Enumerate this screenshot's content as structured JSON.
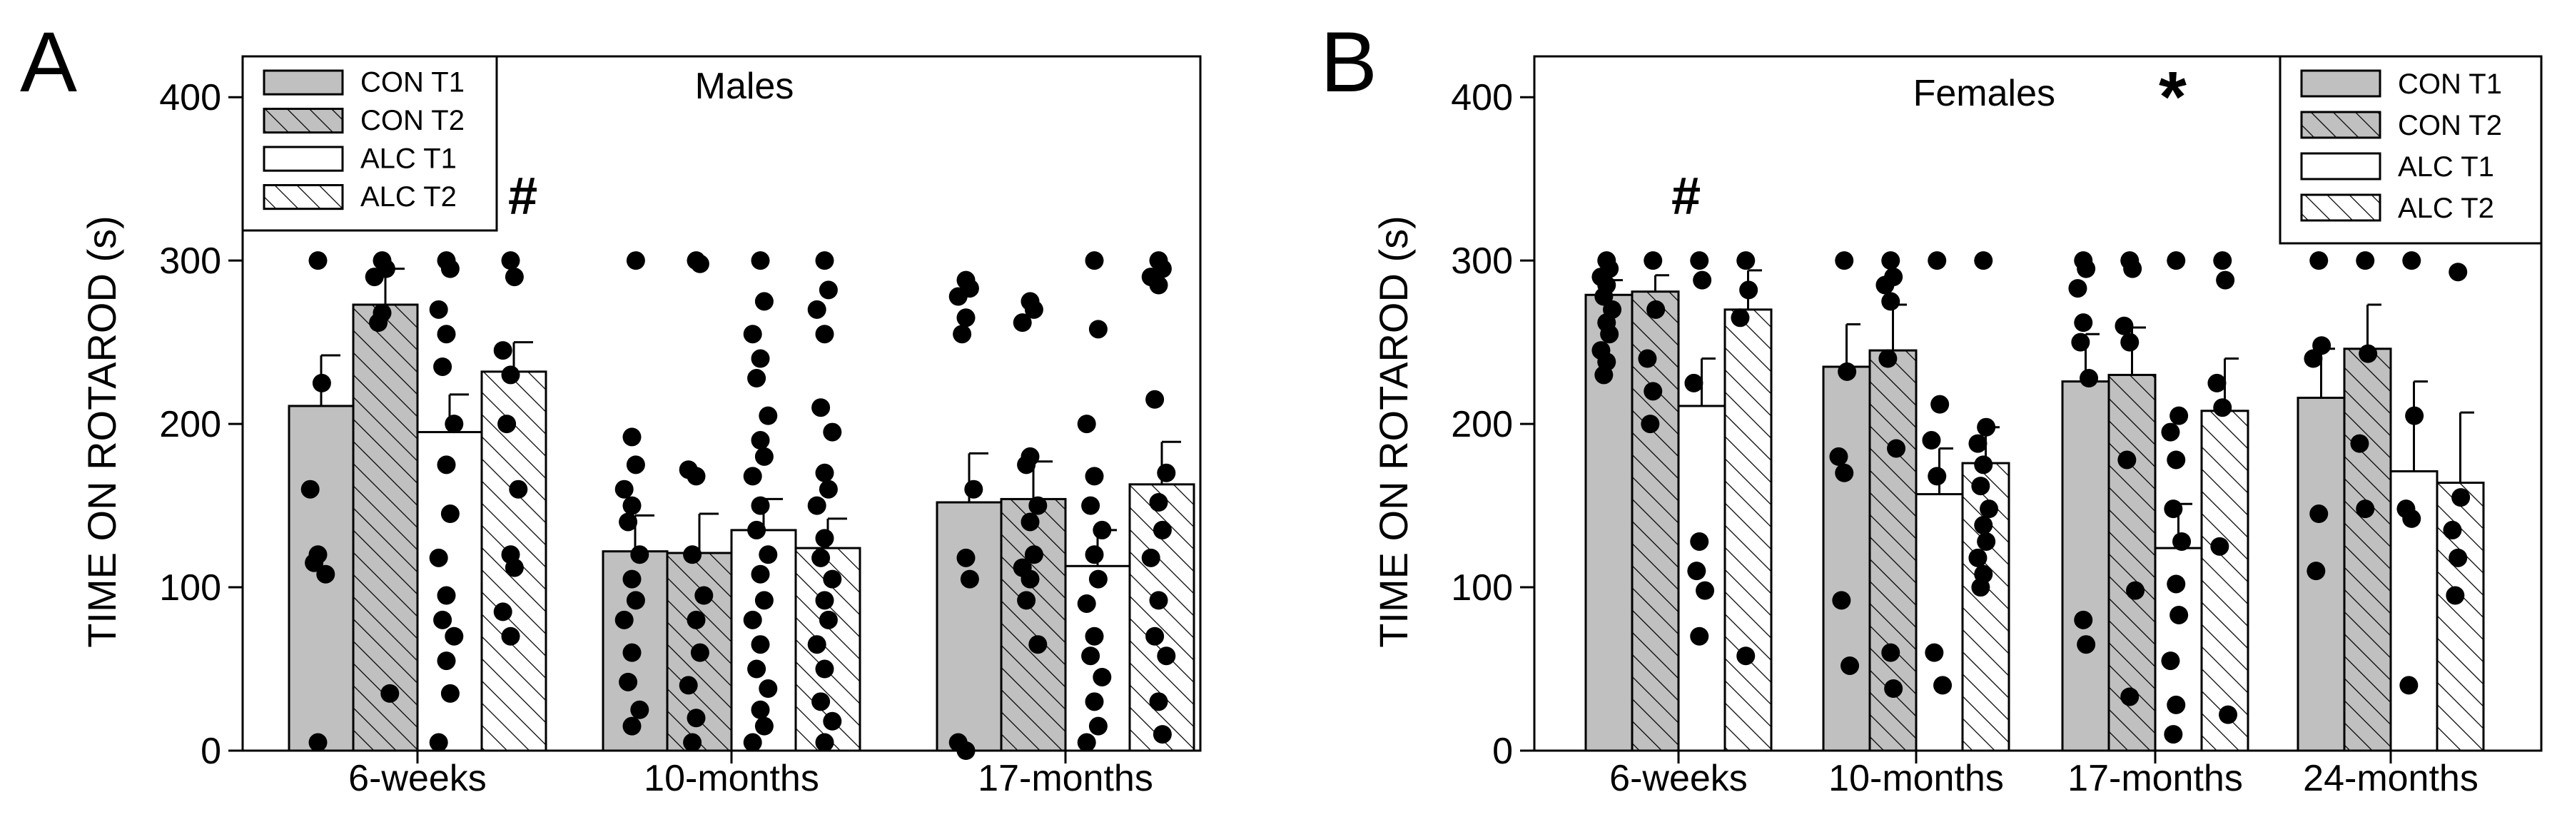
{
  "panel_labels": [
    "A",
    "B"
  ],
  "colors": {
    "con_fill": "#c0c0c0",
    "alc_fill": "#ffffff",
    "stroke": "#000000",
    "dot": "#000000"
  },
  "legend_entries": [
    "CON T1",
    "CON T2",
    "ALC T1",
    "ALC T2"
  ],
  "chart_data": [
    {
      "type": "bar",
      "panel": "A",
      "title": "Males",
      "ylabel": "TIME ON ROTAROD (s)",
      "ylim": [
        0,
        425
      ],
      "yticks": [
        "0",
        "100",
        "200",
        "300",
        "400"
      ],
      "categories": [
        "6-weeks",
        "10-months",
        "17-months"
      ],
      "legend_position": "top-left",
      "series": [
        {
          "name": "CON T1",
          "fill": "solid-gray",
          "values": [
            211,
            122,
            152
          ],
          "errors": [
            31,
            22,
            30
          ],
          "points": [
            [
              300,
              225,
              160,
              120,
              115,
              108,
              5
            ],
            [
              192,
              175,
              160,
              150,
              140,
              120,
              105,
              92,
              80,
              60,
              42,
              25,
              15,
              300
            ],
            [
              288,
              283,
              278,
              265,
              255,
              160,
              118,
              105,
              5,
              0
            ]
          ]
        },
        {
          "name": "CON T2",
          "fill": "hatched-gray",
          "values": [
            273,
            121,
            154
          ],
          "errors": [
            22,
            24,
            23
          ],
          "points": [
            [
              300,
              295,
              290,
              268,
              262,
              35
            ],
            [
              300,
              298,
              172,
              168,
              120,
              95,
              80,
              60,
              40,
              20,
              5
            ],
            [
              275,
              270,
              262,
              180,
              175,
              150,
              140,
              120,
              112,
              105,
              92,
              65
            ]
          ]
        },
        {
          "name": "ALC T1",
          "fill": "white",
          "values": [
            195,
            135,
            113
          ],
          "errors": [
            23,
            19,
            22
          ],
          "points": [
            [
              300,
              295,
              270,
              255,
              235,
              200,
              175,
              145,
              118,
              95,
              80,
              70,
              55,
              35,
              5
            ],
            [
              300,
              275,
              255,
              240,
              228,
              205,
              190,
              180,
              168,
              150,
              135,
              120,
              108,
              92,
              80,
              65,
              50,
              38,
              25,
              15,
              5
            ],
            [
              300,
              258,
              200,
              168,
              150,
              135,
              120,
              105,
              90,
              70,
              58,
              45,
              30,
              15,
              5
            ]
          ]
        },
        {
          "name": "ALC T2",
          "fill": "hatched-white",
          "values": [
            232,
            124,
            163
          ],
          "errors": [
            18,
            18,
            26
          ],
          "points": [
            [
              300,
              290,
              245,
              230,
              200,
              160,
              120,
              112,
              85,
              70
            ],
            [
              300,
              282,
              270,
              255,
              210,
              195,
              170,
              160,
              150,
              130,
              118,
              105,
              92,
              80,
              65,
              50,
              30,
              18,
              5
            ],
            [
              300,
              295,
              290,
              285,
              215,
              170,
              152,
              135,
              118,
              92,
              70,
              58,
              30,
              10
            ]
          ]
        }
      ],
      "annotations": [
        "#"
      ]
    },
    {
      "type": "bar",
      "panel": "B",
      "title": "Females",
      "title_mark": "*",
      "ylabel": "TIME ON ROTAROD (s)",
      "ylim": [
        0,
        425
      ],
      "yticks": [
        "0",
        "100",
        "200",
        "300",
        "400"
      ],
      "categories": [
        "6-weeks",
        "10-months",
        "17-months",
        "24-months"
      ],
      "legend_position": "top-right",
      "series": [
        {
          "name": "CON T1",
          "fill": "solid-gray",
          "values": [
            279,
            235,
            226,
            216
          ],
          "errors": [
            9,
            26,
            29,
            30
          ],
          "points": [
            [
              300,
              295,
              290,
              285,
              278,
              270,
              262,
              255,
              245,
              238,
              230
            ],
            [
              300,
              232,
              180,
              170,
              92,
              52
            ],
            [
              300,
              295,
              283,
              262,
              250,
              228,
              80,
              65
            ],
            [
              300,
              248,
              240,
              145,
              110
            ]
          ]
        },
        {
          "name": "CON T2",
          "fill": "hatched-gray",
          "values": [
            281,
            245,
            230,
            246
          ],
          "errors": [
            10,
            28,
            29,
            27
          ],
          "points": [
            [
              300,
              270,
              240,
              220,
              200
            ],
            [
              300,
              290,
              285,
              275,
              240,
              185,
              60,
              38
            ],
            [
              300,
              295,
              260,
              250,
              178,
              98,
              33
            ],
            [
              300,
              243,
              188,
              148
            ]
          ]
        },
        {
          "name": "ALC T1",
          "fill": "white",
          "values": [
            211,
            157,
            124,
            171
          ],
          "errors": [
            29,
            28,
            27,
            55
          ],
          "points": [
            [
              300,
              288,
              225,
              128,
              110,
              98,
              70
            ],
            [
              300,
              212,
              190,
              168,
              60,
              40
            ],
            [
              300,
              205,
              195,
              178,
              148,
              128,
              102,
              83,
              55,
              28,
              10
            ],
            [
              300,
              205,
              148,
              142,
              40
            ]
          ]
        },
        {
          "name": "ALC T2",
          "fill": "hatched-white",
          "values": [
            270,
            176,
            208,
            164
          ],
          "errors": [
            24,
            22,
            32,
            43
          ],
          "points": [
            [
              300,
              282,
              265,
              58
            ],
            [
              300,
              198,
              188,
              175,
              162,
              148,
              138,
              128,
              118,
              108,
              100
            ],
            [
              300,
              288,
              225,
              210,
              125,
              22
            ],
            [
              293,
              155,
              135,
              118,
              95
            ]
          ]
        }
      ],
      "annotations": [
        "#"
      ]
    }
  ]
}
